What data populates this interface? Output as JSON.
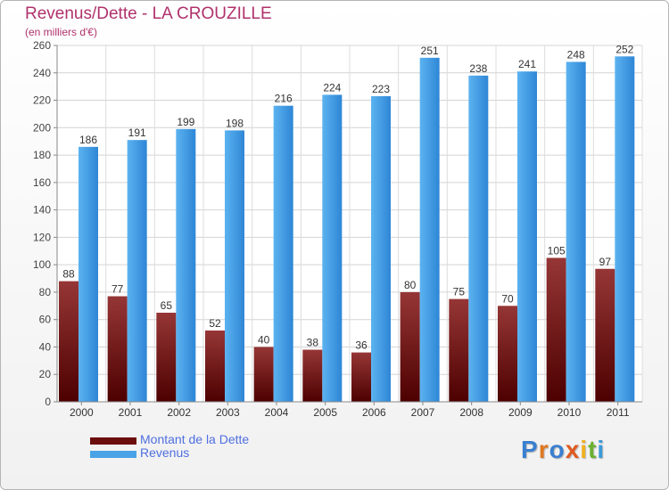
{
  "title": "Revenus/Dette - LA CROUZILLE",
  "subtitle": "(en milliers d'€)",
  "chart_data": {
    "type": "bar",
    "categories": [
      "2000",
      "2001",
      "2002",
      "2003",
      "2004",
      "2005",
      "2006",
      "2007",
      "2008",
      "2009",
      "2010",
      "2011"
    ],
    "series": [
      {
        "name": "Montant de la Dette",
        "values": [
          88,
          77,
          65,
          52,
          40,
          38,
          36,
          80,
          75,
          70,
          105,
          97
        ],
        "color": "#7a1a1a"
      },
      {
        "name": "Revenus",
        "values": [
          186,
          191,
          199,
          198,
          216,
          224,
          223,
          251,
          238,
          241,
          248,
          252
        ],
        "color": "#4aa3e6"
      }
    ],
    "ylim": [
      0,
      260
    ],
    "yticks": [
      0,
      20,
      40,
      60,
      80,
      100,
      120,
      140,
      160,
      180,
      200,
      220,
      240,
      260
    ],
    "grid": true,
    "legend_position": "bottom-left"
  },
  "legend": {
    "items": [
      {
        "label": "Montant de la Dette",
        "color": "#6b0d0d"
      },
      {
        "label": "Revenus",
        "color": "#4aa3e6"
      }
    ]
  },
  "logo": {
    "letters": [
      "P",
      "r",
      "o",
      "x",
      "i",
      "t",
      "i"
    ],
    "colors": [
      "#3a7fd0",
      "#e07820",
      "#3a7fd0",
      "#e05a20",
      "#f0b020",
      "#6ab030",
      "#3a9ad8"
    ]
  }
}
